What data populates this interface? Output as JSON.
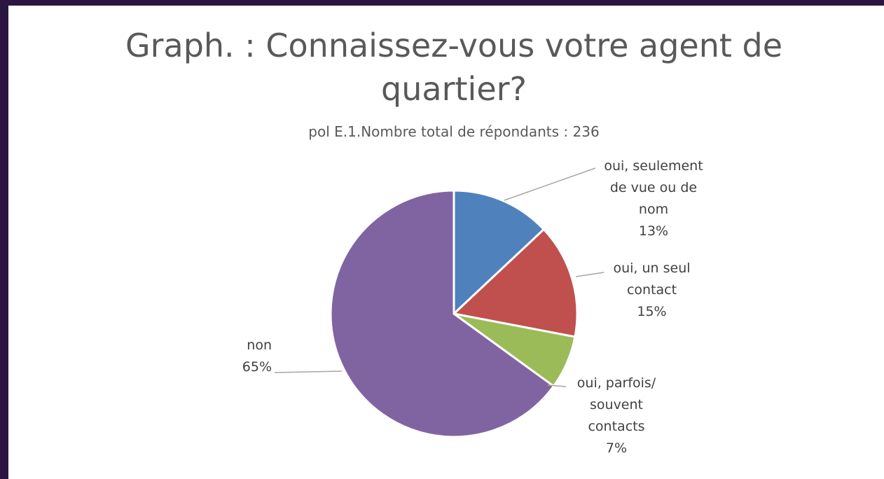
{
  "chart_data": {
    "type": "pie",
    "title": "Graph. : Connaissez-vous votre agent de quartier?",
    "subtitle": "pol E.1.Nombre total de répondants : 236",
    "categories": [
      "oui, seulement de vue ou de nom",
      "oui, un seul contact",
      "oui, parfois/ souvent contacts",
      "non"
    ],
    "values": [
      13,
      15,
      7,
      65
    ],
    "value_labels": [
      "13%",
      "15%",
      "7%",
      "65%"
    ],
    "colors": [
      "#4f81bd",
      "#c0504d",
      "#9bbb59",
      "#8064a2"
    ]
  }
}
